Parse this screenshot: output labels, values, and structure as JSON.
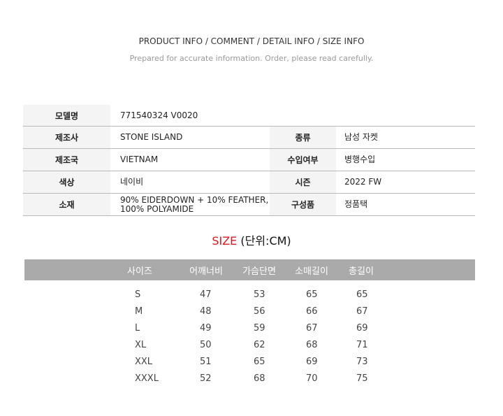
{
  "header": {
    "title": "PRODUCT INFO / COMMENT / DETAIL INFO / SIZE INFO",
    "subtitle": "Prepared for accurate information. Order, please read carefully."
  },
  "info": [
    {
      "l1": "모델명",
      "v1": "771540324 V0020",
      "l2": "",
      "v2": ""
    },
    {
      "l1": "제조사",
      "v1": "STONE ISLAND",
      "l2": "종류",
      "v2": "남성 자켓"
    },
    {
      "l1": "제조국",
      "v1": "VIETNAM",
      "l2": "수입여부",
      "v2": "병행수입"
    },
    {
      "l1": "색상",
      "v1": "네이비",
      "l2": "시즌",
      "v2": "2022 FW"
    },
    {
      "l1": "소재",
      "v1": "90% EIDERDOWN + 10% FEATHER, 100% POLYAMIDE",
      "l2": "구성품",
      "v2": "정품택"
    }
  ],
  "size": {
    "title_red": "SIZE",
    "title_rest": " (단위:CM)",
    "headers": [
      "사이즈",
      "어깨너비",
      "가슴단면",
      "소매길이",
      "총길이"
    ],
    "rows": [
      [
        "S",
        "47",
        "53",
        "65",
        "65"
      ],
      [
        "M",
        "48",
        "56",
        "66",
        "67"
      ],
      [
        "L",
        "49",
        "59",
        "67",
        "69"
      ],
      [
        "XL",
        "50",
        "62",
        "68",
        "71"
      ],
      [
        "XXL",
        "51",
        "65",
        "69",
        "73"
      ],
      [
        "XXXL",
        "52",
        "68",
        "70",
        "75"
      ]
    ]
  },
  "colors": {
    "accent": "#d71920",
    "header_bg": "#aaaaaa",
    "label_bg": "#f4f4f4"
  }
}
